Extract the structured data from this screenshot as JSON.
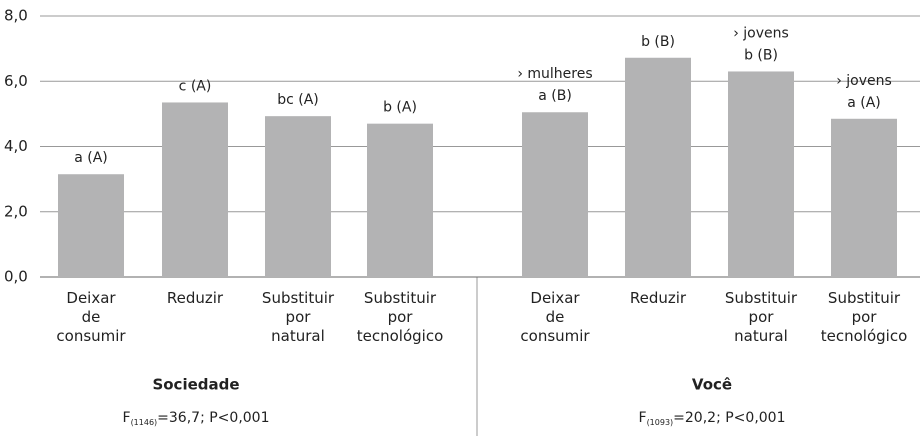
{
  "chart_data": [
    {
      "type": "bar",
      "group": "Sociedade",
      "stat": {
        "symbol": "F",
        "subscript": "(1146)",
        "text": "=36,7; P<0,001"
      },
      "categories": [
        "Deixar de consumir",
        "Reduzir",
        "Substituir por natural",
        "Substituir por tecnológico"
      ],
      "values": [
        3.15,
        5.35,
        4.93,
        4.7
      ],
      "value_labels": [
        "a (A)",
        "c (A)",
        "bc (A)",
        "b (A)"
      ],
      "color": "#b3b3b4",
      "ylim": [
        0,
        8
      ],
      "yticks": [
        {
          "value": 0,
          "label": "0,0"
        },
        {
          "value": 2,
          "label": "2,0"
        },
        {
          "value": 4,
          "label": "4,0"
        },
        {
          "value": 6,
          "label": "6,0"
        },
        {
          "value": 8,
          "label": "8,0"
        }
      ],
      "grid": true
    },
    {
      "type": "bar",
      "group": "Você",
      "stat": {
        "symbol": "F",
        "subscript": "(1093)",
        "text": "=20,2; P<0,001"
      },
      "categories": [
        "Deixar de consumir",
        "Reduzir",
        "Substituir por natural",
        "Substituir por tecnológico"
      ],
      "values": [
        5.05,
        6.72,
        6.3,
        4.85
      ],
      "value_labels": [
        "a (B)",
        "b (B)",
        "b (B)",
        "a (A)"
      ],
      "annotations": [
        "› mulheres",
        null,
        "› jovens",
        "› jovens"
      ],
      "color": "#b3b3b4",
      "ylim": [
        0,
        8
      ]
    }
  ]
}
